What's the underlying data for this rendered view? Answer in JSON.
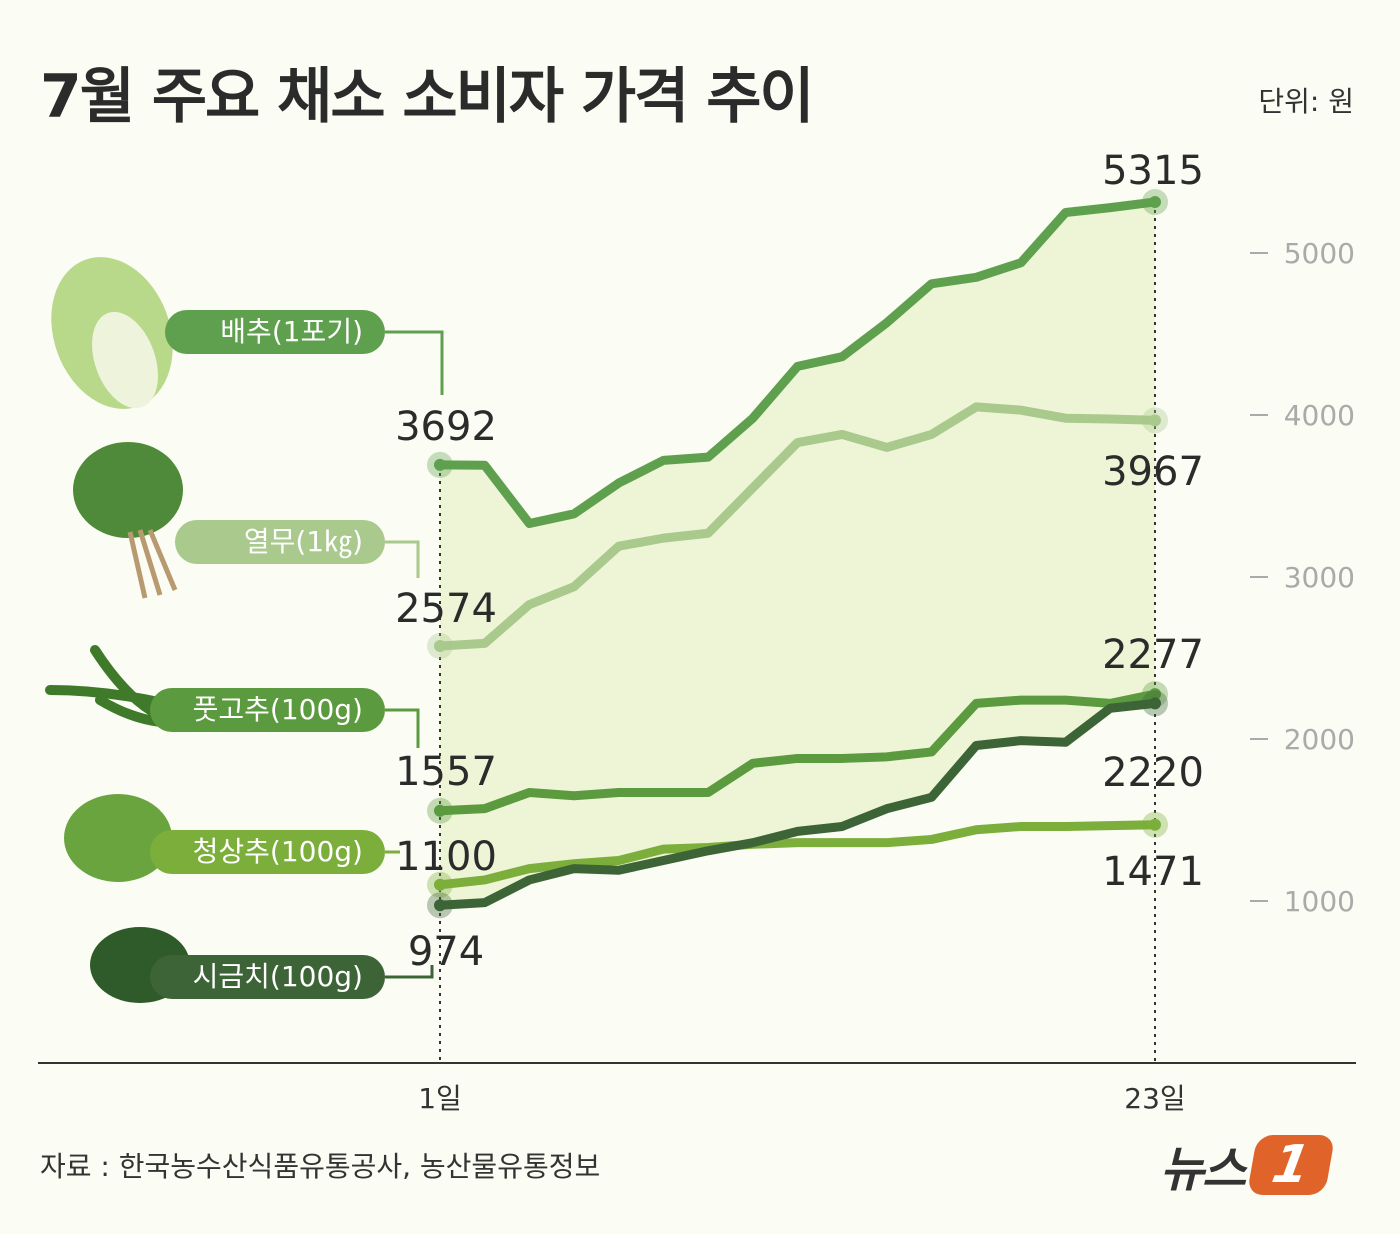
{
  "title": "7월 주요 채소 소비자 가격 추이",
  "unit": "단위: 원",
  "source": "자료 : 한국농수산식품유통공사, 농산물유통정보",
  "logo": "뉴스1",
  "chart_data": {
    "type": "line",
    "title": "7월 주요 채소 소비자 가격 추이",
    "unit": "원",
    "x_tick_labels": [
      "1일",
      "23일"
    ],
    "ylim": [
      0,
      5500
    ],
    "y_ticks": [
      1000,
      2000,
      3000,
      4000,
      5000
    ],
    "y_tick_labels": [
      "1000",
      "2000",
      "3000",
      "4000",
      "5000"
    ],
    "grid": false,
    "series": [
      {
        "name": "배추(1포기)",
        "color": "#5fa04e",
        "start_label": "3692",
        "end_label": "5315",
        "values": [
          3692,
          3690,
          3330,
          3390,
          3580,
          3720,
          3740,
          3980,
          4300,
          4360,
          4570,
          4810,
          4850,
          4940,
          5250,
          5280,
          5315
        ]
      },
      {
        "name": "열무(1㎏)",
        "color": "#a9c98d",
        "start_label": "2574",
        "end_label": "3967",
        "values": [
          2574,
          2590,
          2830,
          2940,
          3190,
          3240,
          3270,
          3550,
          3830,
          3880,
          3800,
          3880,
          4050,
          4030,
          3980,
          3975,
          3967
        ]
      },
      {
        "name": "풋고추(100g)",
        "color": "#5b9a3e",
        "start_label": "1557",
        "end_label": "2277",
        "values": [
          1557,
          1570,
          1670,
          1650,
          1670,
          1670,
          1670,
          1850,
          1880,
          1880,
          1890,
          1920,
          2220,
          2240,
          2240,
          2220,
          2277
        ]
      },
      {
        "name": "청상추(100g)",
        "color": "#7cae3b",
        "start_label": "1100",
        "end_label": "1471",
        "values": [
          1100,
          1130,
          1200,
          1230,
          1250,
          1320,
          1330,
          1350,
          1360,
          1360,
          1360,
          1380,
          1440,
          1460,
          1460,
          1465,
          1471
        ]
      },
      {
        "name": "시금치(100g)",
        "color": "#3d6436",
        "start_label": "974",
        "end_label": "2220",
        "values": [
          974,
          990,
          1130,
          1200,
          1190,
          1250,
          1310,
          1360,
          1430,
          1460,
          1570,
          1640,
          1960,
          1990,
          1980,
          2190,
          2220
        ]
      }
    ]
  }
}
